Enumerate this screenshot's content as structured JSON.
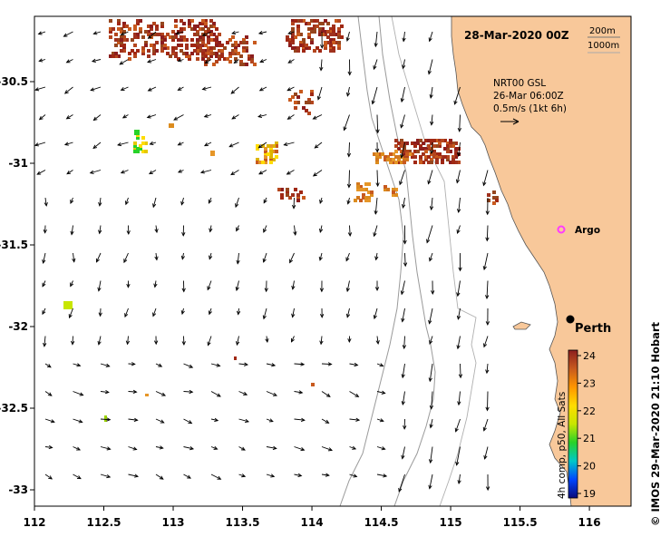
{
  "map": {
    "date_title": "28-Mar-2020 00Z",
    "depth_labels": [
      "200m",
      "1000m"
    ],
    "current_legend": {
      "line1": "NRT00 GSL",
      "line2": "26-Mar 06:00Z",
      "line3": "0.5m/s (1kt 6h)"
    },
    "argo_label": "Argo",
    "city_label": "Perth",
    "credit": "© IMOS 29-Mar-2020 21:10 Hobart",
    "axes": {
      "lon_ticks": [
        "112",
        "112.5",
        "113",
        "113.5",
        "114",
        "114.5",
        "115",
        "115.5",
        "116"
      ],
      "lat_ticks": [
        "-30.5",
        "-31",
        "-31.5",
        "-32",
        "-32.5",
        "-33"
      ],
      "lon_range": [
        112,
        116.3
      ],
      "lat_range": [
        -33.1,
        -30.1
      ]
    },
    "colorbar": {
      "label": "4h comp, p50, All Sats",
      "ticks": [
        "24",
        "23",
        "22",
        "21",
        "20",
        "19"
      ],
      "range": [
        19,
        24
      ],
      "colors": [
        "#0a0a7a",
        "#0046ff",
        "#00c8c8",
        "#28d228",
        "#c8e600",
        "#ffdc00",
        "#ff9600",
        "#c85a1e",
        "#8c1e1e"
      ]
    },
    "land_color": "#f8c89a",
    "argo_color": "#ff3cff"
  }
}
